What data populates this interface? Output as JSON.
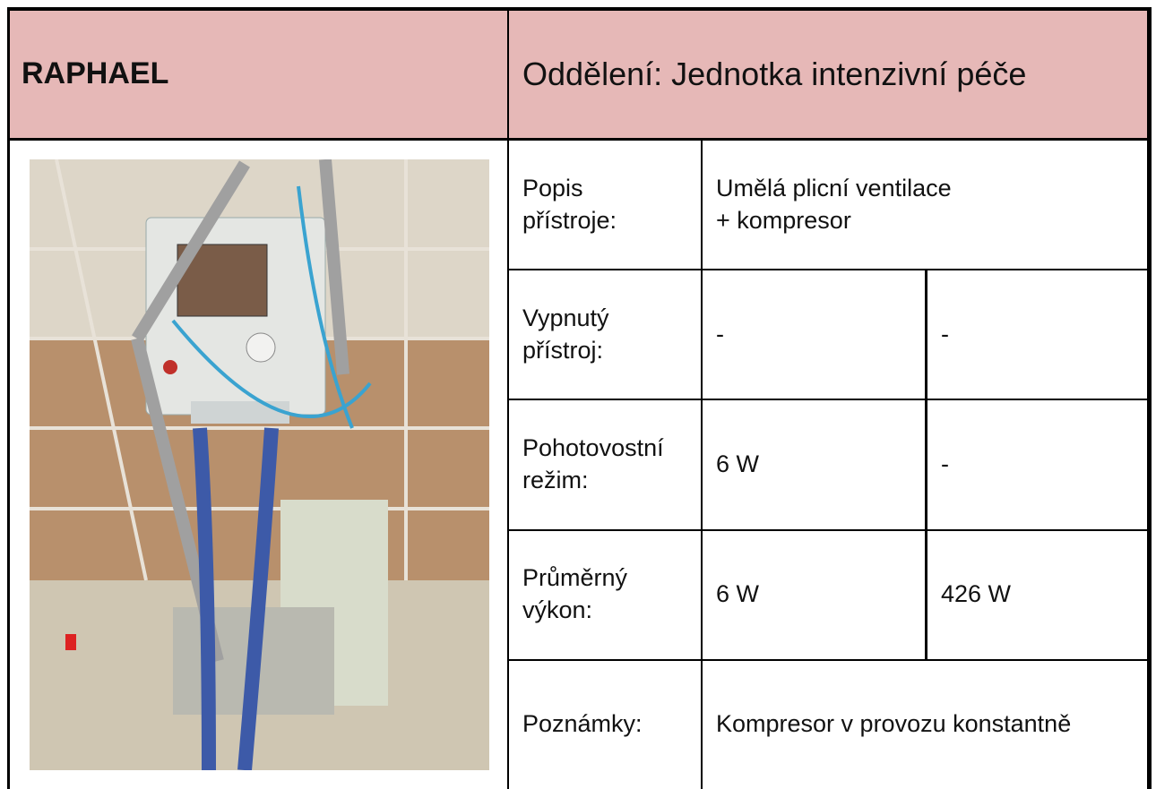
{
  "header": {
    "device": "RAPHAEL",
    "department": "Oddělení: Jednotka intenzivní péče"
  },
  "table": {
    "rows": [
      {
        "label": "Popis\npřístroje:",
        "values": [
          "Umělá plicní ventilace\n+ kompresor"
        ]
      },
      {
        "label": "Vypnutý\npřístroj:",
        "values": [
          "-",
          "-"
        ]
      },
      {
        "label": "Pohotovostní\nrežim:",
        "values": [
          "6 W",
          "-"
        ]
      },
      {
        "label": "Průměrný\nvýkon:",
        "values": [
          "6 W",
          "426 W"
        ]
      },
      {
        "label": "Poznámky:",
        "values": [
          "Kompresor v provozu konstantně"
        ]
      }
    ]
  }
}
